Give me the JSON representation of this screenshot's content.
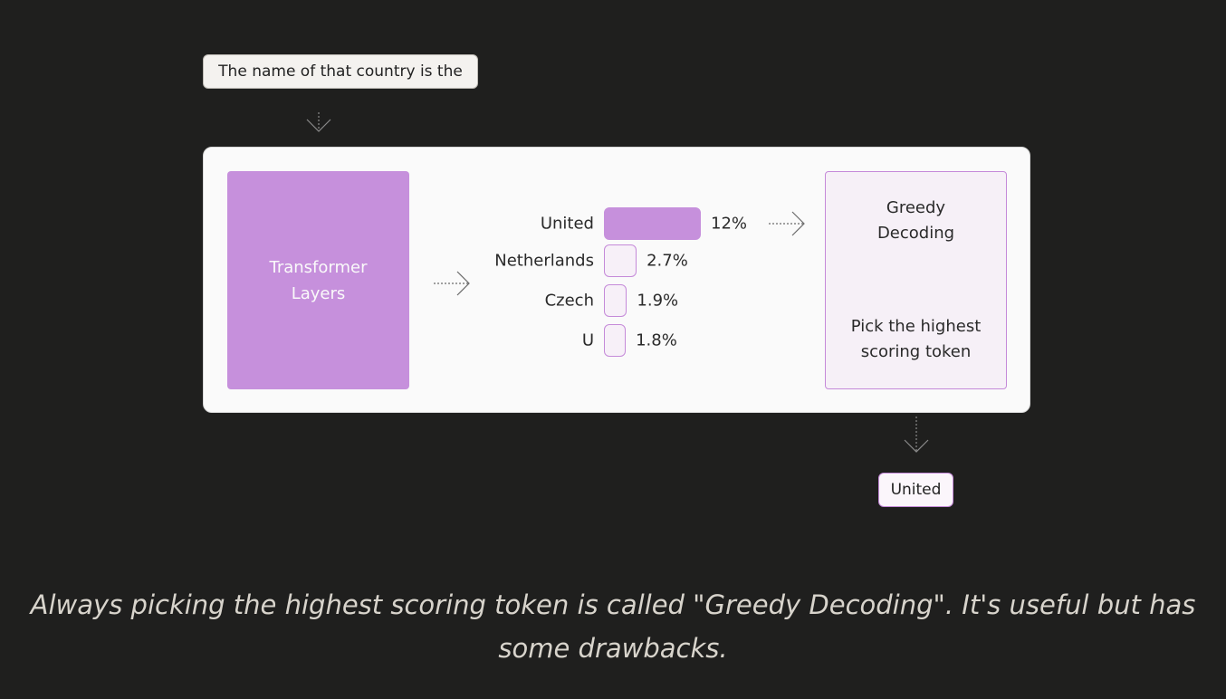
{
  "input": {
    "label": "",
    "text": "The name of that country is the"
  },
  "model": {
    "label": "",
    "transformer": {
      "line1": "Transformer",
      "line2": "Layers"
    },
    "candidates": [
      {
        "token": "United",
        "probability": 12,
        "display": "12%"
      },
      {
        "token": "Netherlands",
        "probability": 2.7,
        "display": "2.7%"
      },
      {
        "token": "Czech",
        "probability": 1.9,
        "display": "1.9%"
      },
      {
        "token": "U",
        "probability": 1.8,
        "display": "1.8%"
      }
    ],
    "greedy": {
      "title_line1": "Greedy",
      "title_line2": "Decoding",
      "desc_line1": "Pick the highest",
      "desc_line2": "scoring token"
    }
  },
  "output": {
    "label": "",
    "text": "United"
  },
  "caption": "Always picking the highest scoring token is called \"Greedy Decoding\". It's useful but has some drawbacks.",
  "colors": {
    "background": "#1f1f1e",
    "accent": "#c690dc",
    "accent_border": "#c58ad9",
    "panel": "#fafafa"
  }
}
